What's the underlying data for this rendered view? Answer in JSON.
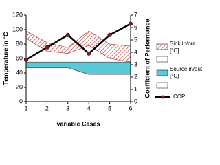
{
  "chart_data": {
    "type": "combo",
    "x": [
      1,
      2,
      3,
      4,
      5,
      6
    ],
    "xlim": [
      1,
      6
    ],
    "xticks": [
      1,
      2,
      3,
      4,
      5,
      6
    ],
    "x_label": "variable Cases",
    "y_label": "Temperature in °C",
    "y2_label": "Coefficient of Performance",
    "ylim": [
      0,
      120
    ],
    "yticks": [
      0,
      20,
      40,
      60,
      80,
      100,
      120
    ],
    "y2lim": [
      0,
      7
    ],
    "y2ticks": [
      0,
      1,
      2,
      3,
      4,
      5,
      6,
      7
    ],
    "legend": "right",
    "series": [
      {
        "name": "Sink in/out [°C]",
        "type": "band",
        "color": "#c0504d",
        "high": [
          98,
          82,
          75,
          98,
          80,
          77
        ],
        "low": [
          88,
          70,
          67,
          78,
          60,
          55
        ]
      },
      {
        "name": "Source in/out [°C]",
        "type": "band",
        "color": "#5bc8d8",
        "high": [
          55,
          55,
          55,
          55,
          55,
          55
        ],
        "low": [
          47,
          47,
          47,
          38,
          38,
          38
        ]
      },
      {
        "name": "COP",
        "type": "line",
        "axis": "y2",
        "color": "#000000",
        "marker_color": "#8b1a1a",
        "values": [
          3.4,
          4.4,
          5.4,
          3.9,
          5.4,
          6.3
        ]
      }
    ]
  }
}
